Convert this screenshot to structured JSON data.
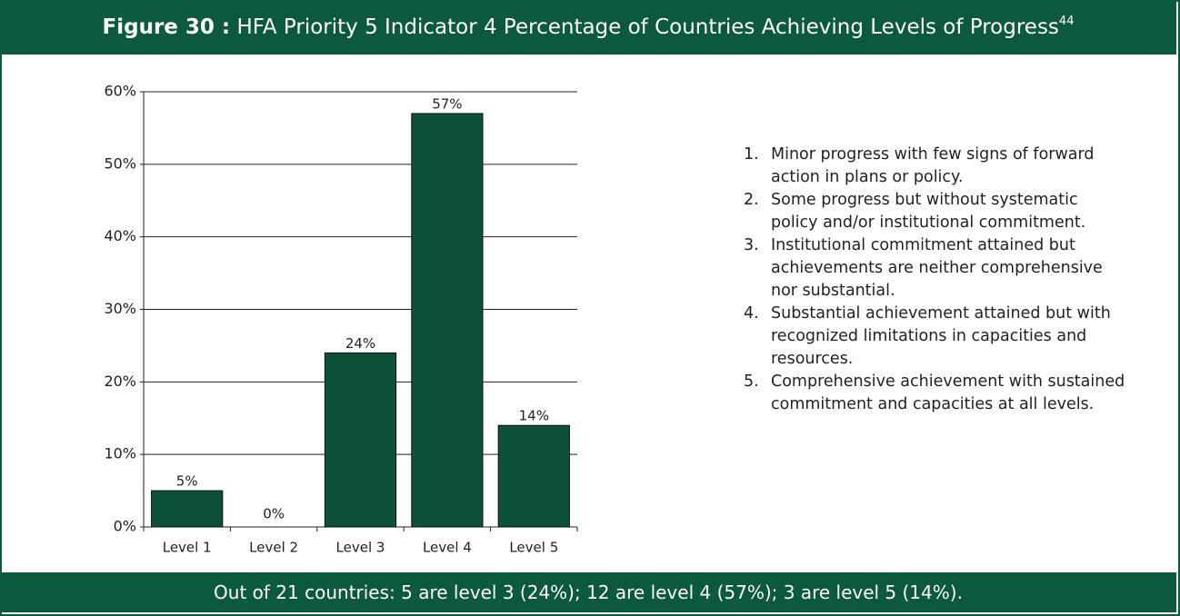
{
  "header": {
    "label": "Figure 30 :",
    "title": "HFA Priority 5 Indicator 4 Percentage of Countries Achieving Levels of Progress",
    "footnote": "44"
  },
  "chart_data": {
    "type": "bar",
    "categories": [
      "Level 1",
      "Level 2",
      "Level 3",
      "Level 4",
      "Level 5"
    ],
    "values": [
      5,
      0,
      24,
      57,
      14
    ],
    "value_labels": [
      "5%",
      "0%",
      "24%",
      "57%",
      "14%"
    ],
    "color": "#0b5238",
    "ylim": [
      0,
      60
    ],
    "yticks": [
      {
        "value": 0,
        "label": "0%"
      },
      {
        "value": 10,
        "label": "10%"
      },
      {
        "value": 20,
        "label": "20%"
      },
      {
        "value": 30,
        "label": "30%"
      },
      {
        "value": 40,
        "label": "40%"
      },
      {
        "value": 50,
        "label": "50%"
      },
      {
        "value": 60,
        "label": "60%"
      }
    ],
    "grid": true
  },
  "notes": [
    {
      "number": "1.",
      "text": "Minor progress with few signs of forward action in plans or policy."
    },
    {
      "number": "2.",
      "text": "Some progress but without systematic policy and/or institutional commitment."
    },
    {
      "number": "3.",
      "text": "Institutional commitment attained but achievements are neither comprehensive nor substantial."
    },
    {
      "number": "4.",
      "text": "Substantial achievement attained but with recognized limitations in capacities and resources."
    },
    {
      "number": "5.",
      "text": "Comprehensive achievement with sustained commitment and capacities at all levels."
    }
  ],
  "footer": "Out of 21 countries: 5 are level 3 (24%); 12 are level 4 (57%); 3 are level 5 (14%)."
}
